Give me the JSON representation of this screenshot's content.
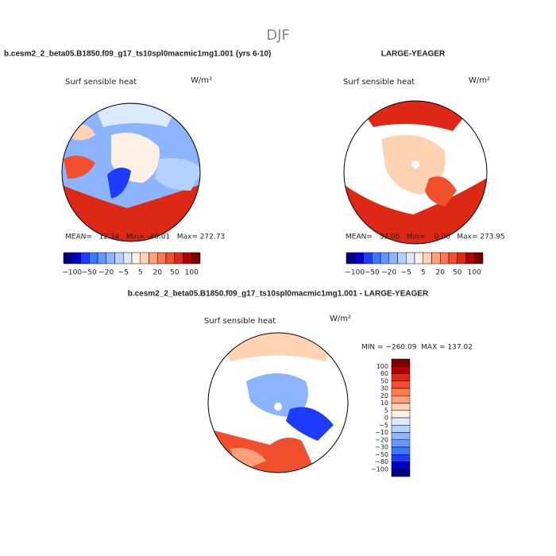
{
  "title": "DJF",
  "palette": [
    "#00007f",
    "#0000c8",
    "#1e3cff",
    "#3c78ff",
    "#6496ff",
    "#8cb4ff",
    "#b4d2ff",
    "#dceaff",
    "#fff0e6",
    "#ffd2b4",
    "#ffa07a",
    "#ff7850",
    "#f0502d",
    "#dc2814",
    "#b40000",
    "#780000"
  ],
  "panels": [
    {
      "heading": "b.cesm2_2_beta05.B1850.f09_g17_ts10spl0macmic1mg1.001 (yrs 6-10)",
      "variable": "Surf sensible heat",
      "units": "W/m²",
      "stats": "MEAN=   12.34   Min= -49.01   Max= 272.73",
      "colorbar_labels": [
        "−100",
        "−50",
        "−20",
        "−5",
        "5",
        "20",
        "50",
        "100"
      ]
    },
    {
      "heading": "LARGE-YEAGER",
      "variable": "Surf sensible heat",
      "units": "W/m²",
      "stats": "MEAN=   33.06   Min=    0.00   Max= 273.95",
      "colorbar_labels": [
        "−100",
        "−50",
        "−20",
        "−5",
        "5",
        "20",
        "50",
        "100"
      ]
    },
    {
      "heading": "b.cesm2_2_beta05.B1850.f09_g17_ts10spl0macmic1mg1.001 - LARGE-YEAGER",
      "variable": "Surf sensible heat",
      "units": "W/m²",
      "stats": "MIN = −260.09  MAX = 137.02",
      "colorbar_labels": [
        "100",
        "80",
        "50",
        "30",
        "20",
        "10",
        "5",
        "0",
        "−5",
        "−10",
        "−20",
        "−30",
        "−50",
        "−80",
        "−100"
      ]
    }
  ]
}
